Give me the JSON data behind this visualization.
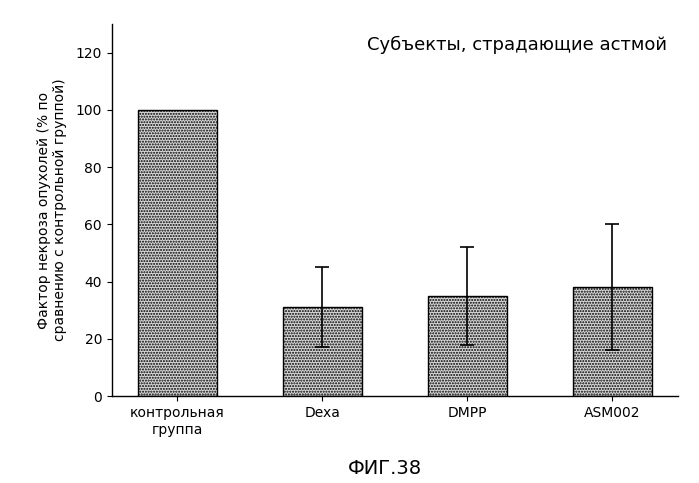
{
  "categories": [
    "контрольная\nгруппа",
    "Dexa",
    "DMPP",
    "ASM002"
  ],
  "values": [
    100,
    31,
    35,
    38
  ],
  "errors": [
    0,
    14,
    17,
    22
  ],
  "bar_color": "#d8d8d8",
  "bar_edgecolor": "#000000",
  "ylim": [
    0,
    130
  ],
  "yticks": [
    0,
    20,
    40,
    60,
    80,
    100,
    120
  ],
  "ylabel_line1": "Фактор некроза опухолей (% по",
  "ylabel_line2": "сравнению с контрольной группой)",
  "xlabel": "ФИГ.38",
  "annotation": "Субъекты, страдающие астмой",
  "background_color": "#ffffff",
  "bar_width": 0.55,
  "ylabel_fontsize": 10,
  "xlabel_fontsize": 14,
  "tick_fontsize": 10,
  "annotation_fontsize": 13
}
